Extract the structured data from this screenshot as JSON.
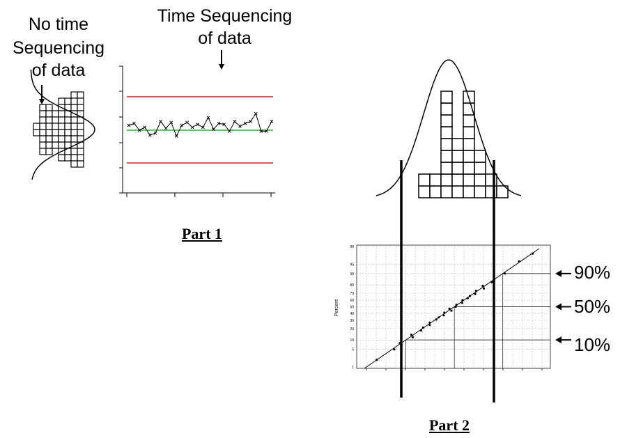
{
  "part1": {
    "caption": "Part 1",
    "no_time_label": [
      "No time",
      "Sequencing",
      "of data"
    ],
    "time_label": [
      "Time Sequencing",
      "of data"
    ],
    "control_chart": {
      "points": [
        0.5,
        0.7,
        0.0,
        0.3,
        -0.5,
        -0.3,
        0.9,
        0.2,
        0.8,
        -0.6,
        0.5,
        0.8,
        0.3,
        0.6,
        0.3,
        1.3,
        0.1,
        0.7,
        0.6,
        -0.1,
        0.9,
        0.4,
        0.7,
        0.9,
        1.7,
        -0.1,
        -0.1,
        0.9
      ],
      "center_color": "#00a000",
      "limit_color": "#c00000"
    },
    "histogram": {
      "columns": [
        1,
        4,
        4,
        3,
        5,
        5,
        6,
        6
      ]
    }
  },
  "part2": {
    "caption": "Part 2",
    "histogram": {
      "columns": [
        2,
        2,
        9,
        5,
        9,
        4,
        2,
        1
      ]
    },
    "prob_plot": {
      "ylabel": "Percent",
      "yticks": [
        "99",
        "95",
        "90",
        "80",
        "70",
        "60",
        "50",
        "40",
        "30",
        "20",
        "10",
        "5",
        "1"
      ],
      "points_percent": [
        2,
        5,
        8,
        12,
        14,
        18,
        21,
        24,
        27,
        31,
        34,
        37,
        41,
        44,
        47,
        50,
        53,
        56,
        60,
        63,
        66,
        69,
        73,
        76,
        79,
        83,
        86,
        90,
        96,
        98
      ]
    },
    "markers": [
      {
        "label": "90%",
        "percent": 90
      },
      {
        "label": "50%",
        "percent": 50
      },
      {
        "label": "10%",
        "percent": 10
      }
    ]
  }
}
